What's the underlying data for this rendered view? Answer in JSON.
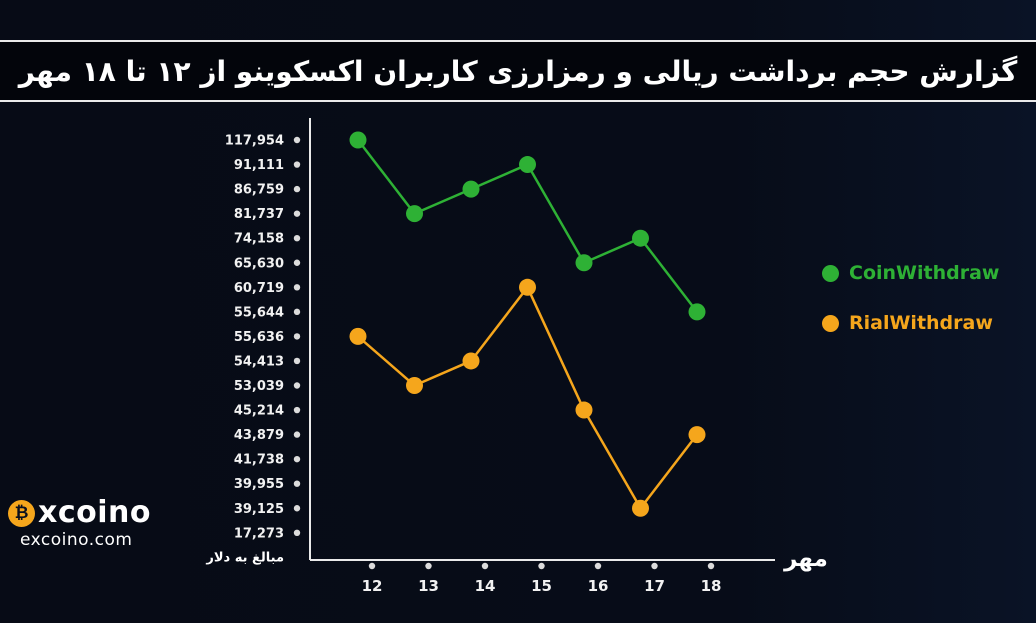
{
  "banner": {
    "title": "گزارش حجم برداشت ریالی و رمزارزی کاربران اکسکوینو از ۱۲ تا ۱۸ مهر"
  },
  "chart_data": {
    "type": "line",
    "categories": [
      "12",
      "13",
      "14",
      "15",
      "16",
      "17",
      "18"
    ],
    "series": [
      {
        "name": "CoinWithdraw",
        "color": "#2eb135",
        "values": [
          117954,
          81737,
          86759,
          91111,
          65630,
          74158,
          55644
        ]
      },
      {
        "name": "RialWithdraw",
        "color": "#f5a61c",
        "values": [
          55636,
          53039,
          54413,
          60719,
          45214,
          39125,
          43879
        ]
      }
    ],
    "y_axis_labels": [
      "117,954",
      "91,111",
      "86,759",
      "81,737",
      "74,158",
      "65,630",
      "60,719",
      "55,644",
      "55,636",
      "54,413",
      "53,039",
      "45,214",
      "43,879",
      "41,738",
      "39,955",
      "39,125",
      "17,273"
    ],
    "y_axis_scale": "ordinal",
    "xlabel": "مهر",
    "ylabel": "مبالغ به دلار",
    "grid": false,
    "legend_position": "right",
    "axis_color": "#eaeaea",
    "tick_dot_color": "#dcdcdc"
  },
  "logo": {
    "wordmark": "excoino",
    "wordmark_rest": "xcoino",
    "url_label": "excoino.com",
    "coin_glyph": "₿",
    "coin_color": "#f5a61c"
  }
}
